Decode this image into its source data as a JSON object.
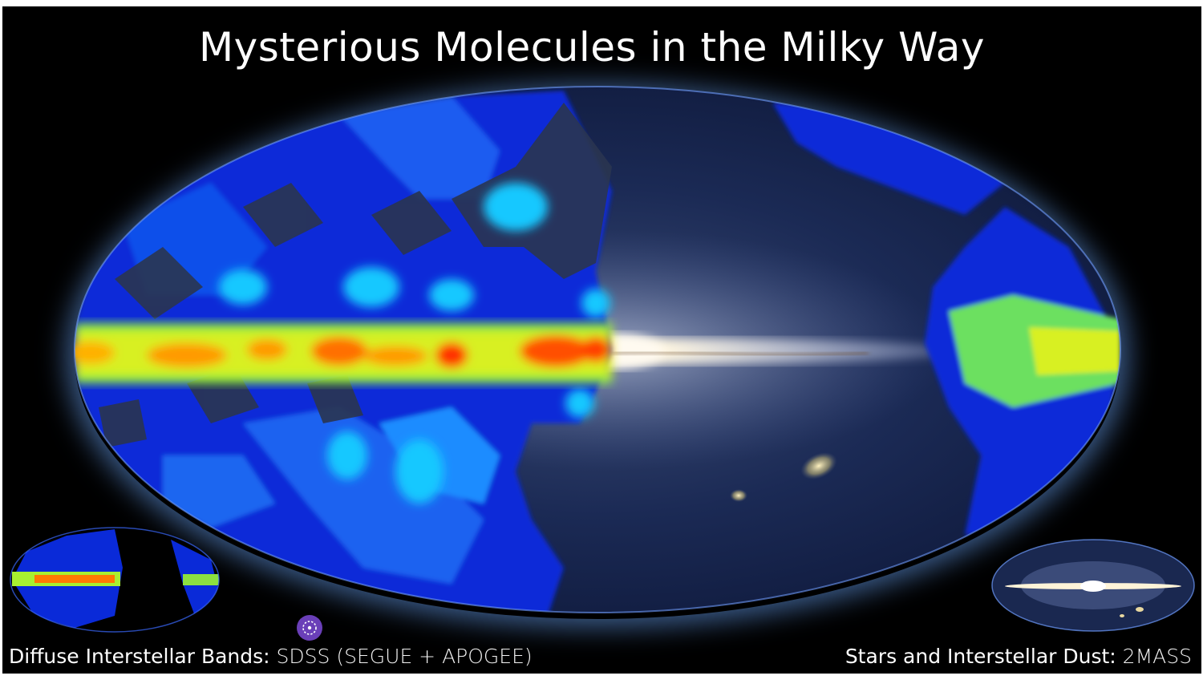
{
  "title": "Mysterious Molecules in the Milky Way",
  "caption_left": {
    "label": "Diffuse Interstellar Bands",
    "separator": ":",
    "source": "SDSS (SEGUE + APOGEE)"
  },
  "caption_right": {
    "label": "Stars and Interstellar Dust",
    "separator": ":",
    "source": "2MASS"
  },
  "colors": {
    "background": "#000000",
    "sky_base": "#0f1a3e",
    "dib_low": "#0a2ad8",
    "dib_mid": "#00b8ff",
    "dib_high": "#ffe000",
    "dib_peak": "#ff3000",
    "galactic_plane": "#f0e6c8",
    "logo": "#6a3fb8"
  },
  "icons": {
    "logo": "sdss-logo-icon"
  }
}
